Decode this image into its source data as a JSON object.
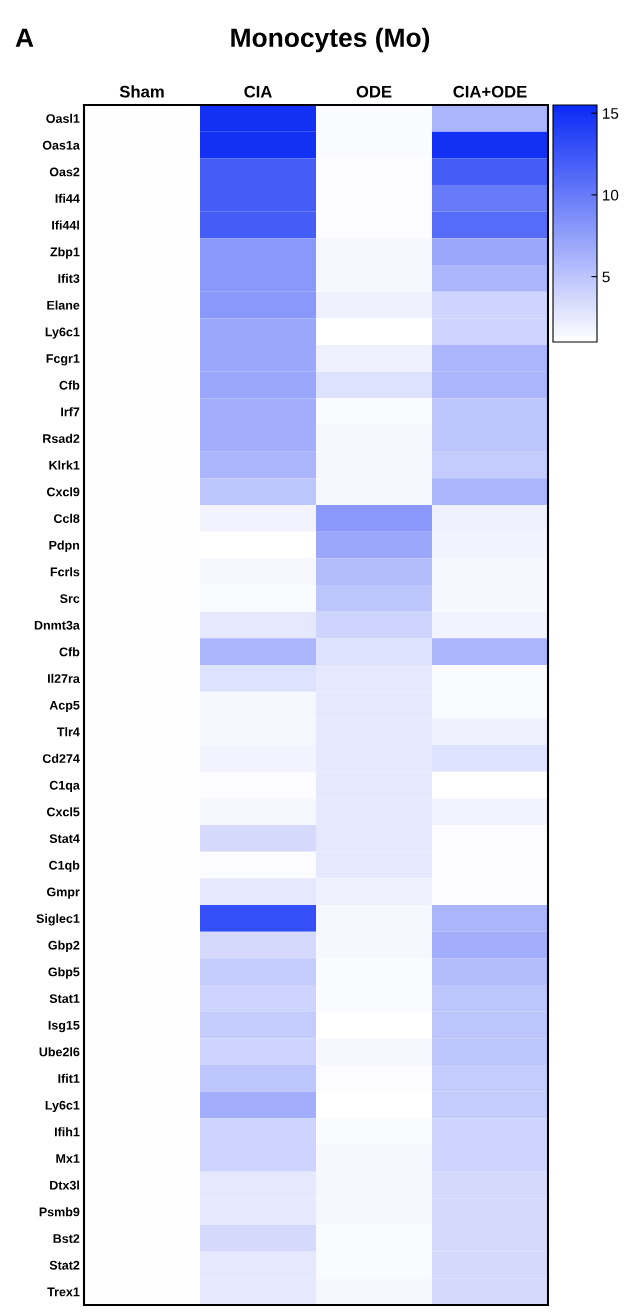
{
  "chart_data": {
    "type": "heatmap",
    "title": "Monocytes (Mo)",
    "annotations": [
      "A"
    ],
    "categories": [
      "Sham",
      "CIA",
      "ODE",
      "CIA+ODE"
    ],
    "y_categories": [
      "Oasl1",
      "Oas1a",
      "Oas2",
      "Ifi44",
      "Ifi44l",
      "Zbp1",
      "Ifit3",
      "Elane",
      "Ly6c1",
      "Fcgr1",
      "Cfb",
      "Irf7",
      "Rsad2",
      "Klrk1",
      "Cxcl9",
      "Ccl8",
      "Pdpn",
      "Fcrls",
      "Src",
      "Dnmt3a",
      "Cfb",
      "Il27ra",
      "Acp5",
      "Tlr4",
      "Cd274",
      "C1qa",
      "Cxcl5",
      "Stat4",
      "C1qb",
      "Gmpr",
      "Siglec1",
      "Gbp2",
      "Gbp5",
      "Stat1",
      "Isg15",
      "Ube2l6",
      "Ifit1",
      "Ly6c1",
      "Ifih1",
      "Mx1",
      "Dtx3l",
      "Psmb9",
      "Bst2",
      "Stat2",
      "Trex1"
    ],
    "cells": [
      [
        1.1,
        15,
        1.3,
        6
      ],
      [
        1.1,
        15,
        1.3,
        15
      ],
      [
        1.1,
        12,
        1.2,
        12
      ],
      [
        1.1,
        12,
        1.2,
        10
      ],
      [
        1.1,
        12,
        1.2,
        11
      ],
      [
        1.1,
        8,
        1.5,
        7
      ],
      [
        1.1,
        8,
        1.5,
        6
      ],
      [
        1.1,
        8,
        2,
        4
      ],
      [
        1.1,
        7,
        1,
        4
      ],
      [
        1.1,
        7,
        2,
        6
      ],
      [
        1.1,
        7,
        3,
        6
      ],
      [
        1.1,
        6.5,
        1.3,
        5
      ],
      [
        1.1,
        6.5,
        1.5,
        5
      ],
      [
        1.1,
        6,
        1.5,
        4.5
      ],
      [
        1.1,
        5,
        1.5,
        6
      ],
      [
        1.1,
        1.8,
        8,
        2
      ],
      [
        1.1,
        1,
        7,
        1.8
      ],
      [
        1.1,
        1.5,
        5.5,
        1.5
      ],
      [
        1.1,
        1.3,
        5,
        1.5
      ],
      [
        1.1,
        2.5,
        4,
        1.8
      ],
      [
        1.1,
        6,
        3,
        6
      ],
      [
        1.1,
        3,
        2.5,
        1.3
      ],
      [
        1.1,
        1.5,
        2.5,
        1.3
      ],
      [
        1.1,
        1.5,
        2.5,
        2
      ],
      [
        1.1,
        1.8,
        2.5,
        3
      ],
      [
        1.1,
        1.2,
        2.5,
        1
      ],
      [
        1.1,
        1.5,
        2.5,
        1.8
      ],
      [
        1.1,
        3.5,
        2.5,
        1.2
      ],
      [
        1.1,
        1.2,
        2.5,
        1.2
      ],
      [
        1.1,
        2.5,
        2,
        1.2
      ],
      [
        1.1,
        13,
        1.5,
        6
      ],
      [
        1.1,
        3.5,
        1.5,
        6.5
      ],
      [
        1.1,
        4.5,
        1.3,
        5.5
      ],
      [
        1.1,
        4,
        1.3,
        5
      ],
      [
        1.1,
        4.5,
        1,
        5
      ],
      [
        1.1,
        4,
        1.5,
        5
      ],
      [
        1.1,
        5,
        1.2,
        4.5
      ],
      [
        1.1,
        6.5,
        1,
        4.5
      ],
      [
        1.1,
        4,
        1.3,
        4
      ],
      [
        1.1,
        4,
        1.5,
        4
      ],
      [
        1.1,
        2.5,
        1.5,
        3.5
      ],
      [
        1.1,
        2.5,
        1.5,
        3.5
      ],
      [
        1.1,
        3.5,
        1.3,
        3.5
      ],
      [
        1.1,
        2.5,
        1.3,
        3.5
      ],
      [
        1.1,
        2.5,
        1.5,
        3.5
      ]
    ],
    "clim": [
      1,
      15.5
    ],
    "cticks": [
      5,
      10,
      15
    ],
    "colors": [
      "#ffffff",
      "#0a2af5"
    ]
  }
}
